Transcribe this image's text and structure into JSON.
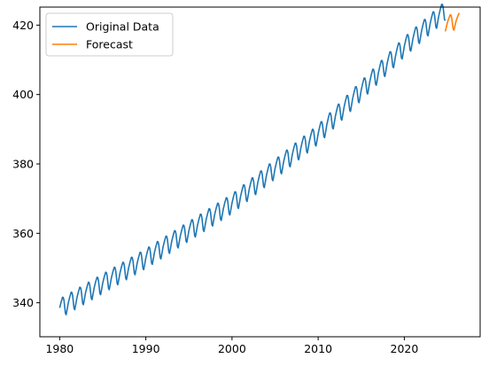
{
  "chart_data": {
    "type": "line",
    "title": "",
    "xlabel": "",
    "ylabel": "",
    "xlim": [
      1977.7,
      2028.8
    ],
    "ylim": [
      330.2,
      425.2
    ],
    "xticks": [
      1980,
      1990,
      2000,
      2010,
      2020
    ],
    "yticks": [
      340,
      360,
      380,
      400,
      420
    ],
    "grid": false,
    "legend_position": "top-left",
    "series": [
      {
        "name": "Original Data",
        "color": "#1f77b4",
        "kind": "seasonal",
        "x_start": 1980.0,
        "x_end": 2024.75,
        "trend_anchors": [
          [
            1980,
            338.2
          ],
          [
            1990,
            352.6
          ],
          [
            2000,
            368.4
          ],
          [
            2010,
            388.4
          ],
          [
            2020,
            413.6
          ],
          [
            2024.75,
            424.0
          ]
        ],
        "seasonal_amplitude": 3.2,
        "samples_per_year": 12
      },
      {
        "name": "Forecast",
        "color": "#ff7f0e",
        "kind": "seasonal",
        "x_start": 2024.75,
        "x_end": 2026.42,
        "trend_anchors": [
          [
            2024.75,
            420.4
          ],
          [
            2026.42,
            421.0
          ]
        ],
        "seasonal_amplitude": 2.6,
        "samples_per_year": 12
      }
    ]
  }
}
